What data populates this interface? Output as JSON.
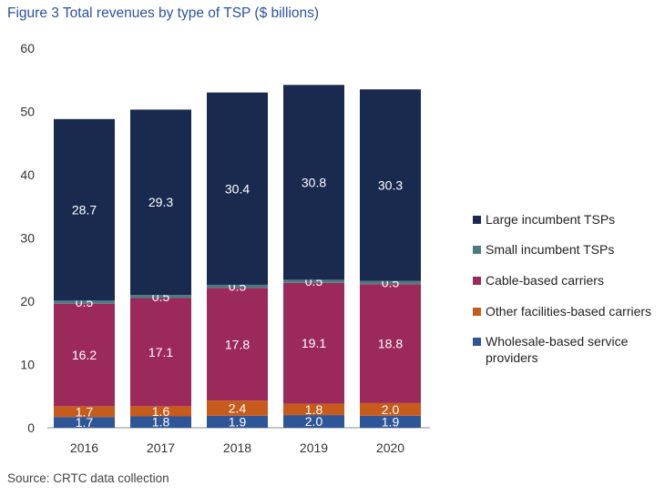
{
  "chart_data": {
    "type": "bar",
    "stacked": true,
    "title": "Figure 3 Total revenues by type of TSP ($ billions)",
    "source": "Source: CRTC data collection",
    "categories": [
      "2016",
      "2017",
      "2018",
      "2019",
      "2020"
    ],
    "ylim": [
      0,
      60
    ],
    "yticks": [
      0,
      10,
      20,
      30,
      40,
      50,
      60
    ],
    "grid": false,
    "legend_position": "right",
    "series": [
      {
        "name": "Wholesale-based service providers",
        "values": [
          1.7,
          1.8,
          1.9,
          2.0,
          1.9
        ],
        "labels": [
          "1.7",
          "1.8",
          "1.9",
          "2.0",
          "1.9"
        ],
        "color": "#2e5597"
      },
      {
        "name": "Other facilities-based carriers",
        "values": [
          1.7,
          1.6,
          2.4,
          1.8,
          2.0
        ],
        "labels": [
          "1.7",
          "1.6",
          "2.4",
          "1.8",
          "2.0"
        ],
        "color": "#c75b1c"
      },
      {
        "name": "Cable-based carriers",
        "values": [
          16.2,
          17.1,
          17.8,
          19.1,
          18.8
        ],
        "labels": [
          "16.2",
          "17.1",
          "17.8",
          "19.1",
          "18.8"
        ],
        "color": "#9b2a5a"
      },
      {
        "name": "Small incumbent TSPs",
        "values": [
          0.5,
          0.5,
          0.5,
          0.5,
          0.5
        ],
        "labels": [
          "0.5",
          "0.5",
          "0.5",
          "0.5",
          "0.5"
        ],
        "color": "#4f7a83"
      },
      {
        "name": "Large incumbent TSPs",
        "values": [
          28.7,
          29.3,
          30.4,
          30.8,
          30.3
        ],
        "labels": [
          "28.7",
          "29.3",
          "30.4",
          "30.8",
          "30.3"
        ],
        "color": "#1a2a4f"
      }
    ],
    "legend_order": [
      4,
      3,
      2,
      1,
      0
    ],
    "legend_lines": [
      [
        "Large incumbent TSPs"
      ],
      [
        "Small incumbent TSPs"
      ],
      [
        "Cable-based carriers"
      ],
      [
        "Other facilities-based carriers"
      ],
      [
        "Wholesale-based service",
        "providers"
      ]
    ]
  }
}
